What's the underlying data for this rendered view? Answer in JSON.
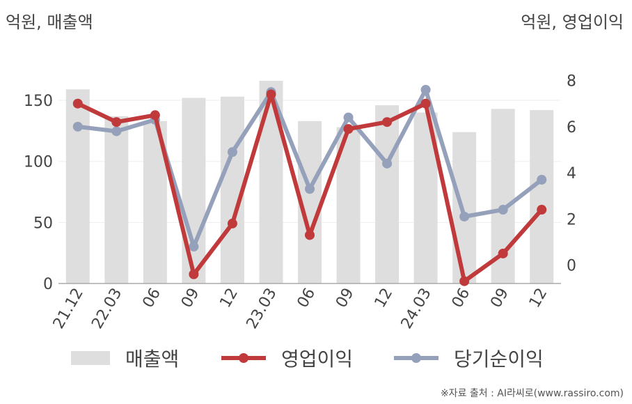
{
  "units": {
    "left": "억원, 매출액",
    "right": "억원, 영업이익"
  },
  "legend": {
    "revenue": "매출액",
    "operating_income": "영업이익",
    "net_income": "당기순이익"
  },
  "source": "※자료 출처 : AI라씨로(www.rassiro.com)",
  "colors": {
    "revenue": "#dedede",
    "operating_income": "#c0393b",
    "net_income": "#95a0bb",
    "axis": "#aaaaaa",
    "grid": "#eeeeee"
  },
  "chart_data": {
    "type": "bar+line",
    "categories": [
      "21.12",
      "22.03",
      "06",
      "09",
      "12",
      "23.03",
      "06",
      "09",
      "12",
      "24.03",
      "06",
      "09",
      "12"
    ],
    "left_axis": {
      "ylim": [
        0,
        170
      ],
      "ticks": [
        0,
        50,
        100,
        150
      ]
    },
    "right_axis": {
      "ylim": [
        -0.8,
        8.2
      ],
      "ticks": [
        0,
        2,
        4,
        6,
        8
      ]
    },
    "series": [
      {
        "name": "매출액",
        "kind": "bar",
        "axis": "left",
        "values": [
          159,
          137,
          133,
          152,
          153,
          166,
          133,
          128,
          146,
          140,
          124,
          143,
          142
        ]
      },
      {
        "name": "영업이익",
        "kind": "line",
        "axis": "right",
        "values": [
          7.0,
          6.2,
          6.5,
          -0.4,
          1.8,
          7.4,
          1.3,
          5.9,
          6.2,
          7.0,
          -0.7,
          0.5,
          2.4
        ]
      },
      {
        "name": "당기순이익",
        "kind": "line",
        "axis": "right",
        "values": [
          6.0,
          5.8,
          6.3,
          0.8,
          4.9,
          7.5,
          3.3,
          6.4,
          4.4,
          7.6,
          2.1,
          2.4,
          3.7
        ]
      }
    ]
  }
}
